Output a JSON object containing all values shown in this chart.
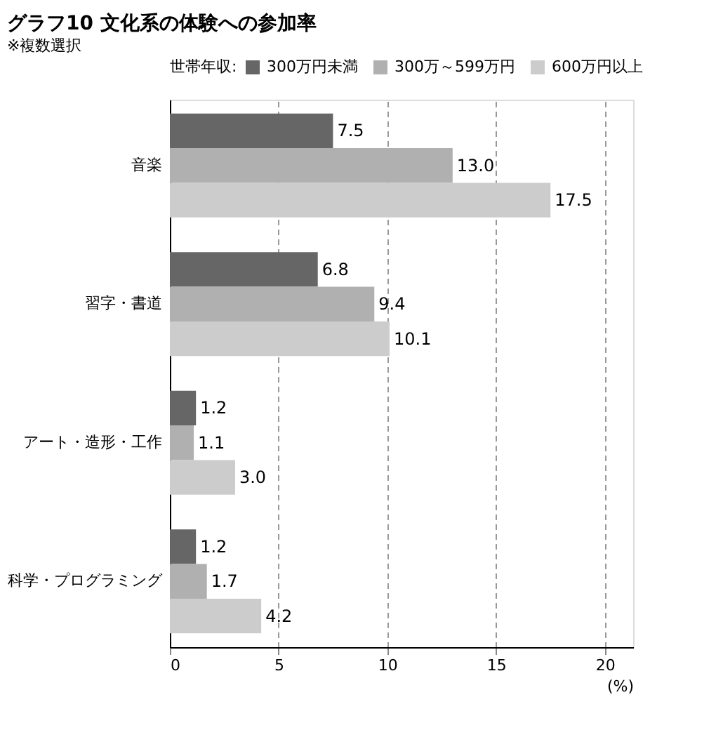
{
  "chart_data": {
    "type": "bar",
    "orientation": "horizontal",
    "title": "グラフ10 文化系の体験への参加率",
    "subtitle": "※複数選択",
    "xlabel": "(%)",
    "legend_title": "世帯年収:",
    "legend": "top",
    "categories": [
      "音楽",
      "習字・書道",
      "アート・造形・工作",
      "科学・プログラミング"
    ],
    "series": [
      {
        "name": "300万円未満",
        "color": "#666666",
        "values": [
          7.5,
          6.8,
          1.2,
          1.2
        ],
        "value_labels": [
          "7.5",
          "6.8",
          "1.2",
          "1.2"
        ]
      },
      {
        "name": "300万～599万円",
        "color": "#b0b0b0",
        "values": [
          13.0,
          9.4,
          1.1,
          1.7
        ],
        "value_labels": [
          "13.0",
          "9.4",
          "1.1",
          "1.7"
        ]
      },
      {
        "name": "600万円以上",
        "color": "#cccccc",
        "values": [
          17.5,
          10.1,
          3.0,
          4.2
        ],
        "value_labels": [
          "17.5",
          "10.1",
          "3.0",
          "4.2"
        ]
      }
    ],
    "xlim": [
      0,
      21.3
    ],
    "xticks": [
      0,
      5,
      10,
      15,
      20
    ],
    "grid": "x"
  }
}
